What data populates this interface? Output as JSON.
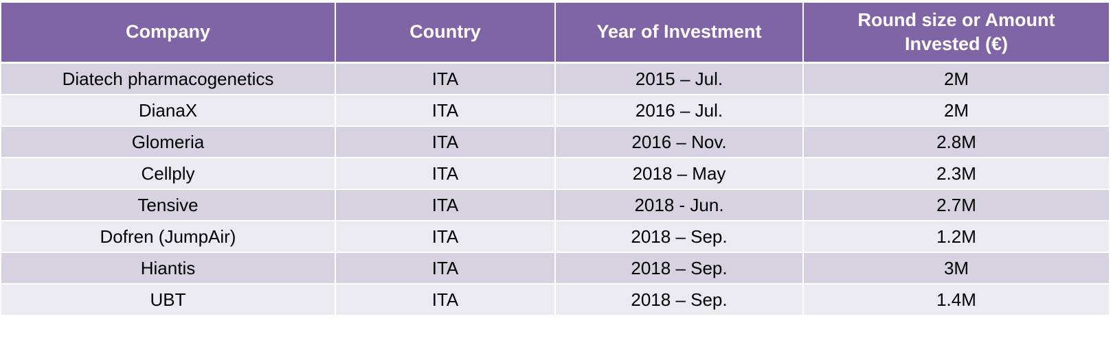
{
  "chart_data": {
    "type": "table",
    "title": "",
    "columns": [
      {
        "key": "company",
        "label": "Company"
      },
      {
        "key": "country",
        "label": "Country"
      },
      {
        "key": "year",
        "label": "Year of Investment"
      },
      {
        "key": "amount",
        "label": "Round size or Amount Invested (€)"
      }
    ],
    "rows": [
      [
        "Diatech pharmacogenetics",
        "ITA",
        "2015 – Jul.",
        "2M"
      ],
      [
        "DianaX",
        "ITA",
        "2016 – Jul.",
        "2M"
      ],
      [
        "Glomeria",
        "ITA",
        "2016 – Nov.",
        "2.8M"
      ],
      [
        "Cellply",
        "ITA",
        "2018 – May",
        "2.3M"
      ],
      [
        "Tensive",
        "ITA",
        "2018 - Jun.",
        "2.7M"
      ],
      [
        "Dofren (JumpAir)",
        "ITA",
        "2018 – Sep.",
        "1.2M"
      ],
      [
        "Hiantis",
        "ITA",
        "2018 – Sep.",
        "3M"
      ],
      [
        "UBT",
        "ITA",
        "2018 – Sep.",
        "1.4M"
      ]
    ],
    "colors": {
      "header_background": "#8065A6",
      "header_text": "#FFFFFF",
      "row_odd_background": "#D6D2E0",
      "row_even_background": "#ECEAF1",
      "cell_text": "#000000",
      "gridline": "#FFFFFF"
    }
  }
}
